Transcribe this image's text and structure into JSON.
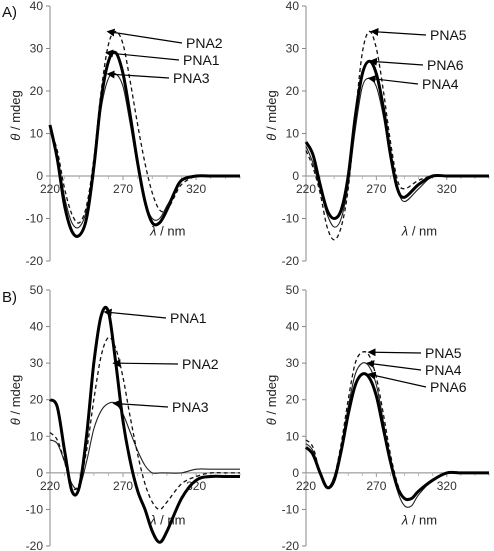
{
  "panel_labels": [
    "A)",
    "B)"
  ],
  "chart_data": [
    {
      "type": "line",
      "xlabel_symbol": "λ",
      "xlabel_unit": " / nm",
      "ylabel_symbol": "θ",
      "ylabel_unit": " / mdeg",
      "xlim": [
        220,
        350
      ],
      "ylim": [
        -20,
        40
      ],
      "x_ticks": [
        220,
        270,
        320
      ],
      "y_ticks": [
        -20,
        -10,
        0,
        10,
        20,
        30,
        40
      ],
      "grid": false,
      "series": [
        {
          "name": "PNA2",
          "style": "dashed",
          "x": [
            220,
            225,
            230,
            235,
            240,
            245,
            250,
            255,
            260,
            265,
            270,
            275,
            280,
            285,
            290,
            295,
            300,
            305,
            310,
            320,
            330,
            340,
            350
          ],
          "y": [
            11,
            6,
            -3,
            -9,
            -11,
            -7,
            4,
            20,
            31,
            34,
            31,
            22,
            12,
            3,
            -4,
            -8,
            -8,
            -5,
            -2,
            0,
            0,
            0,
            0
          ]
        },
        {
          "name": "PNA1",
          "style": "bold",
          "x": [
            220,
            225,
            230,
            235,
            240,
            245,
            250,
            255,
            260,
            265,
            270,
            275,
            280,
            285,
            290,
            295,
            300,
            305,
            310,
            320,
            330,
            340,
            350
          ],
          "y": [
            12,
            4,
            -7,
            -13,
            -14,
            -10,
            2,
            18,
            27,
            29,
            24,
            14,
            3,
            -6,
            -11,
            -11,
            -8,
            -4,
            -1,
            0,
            0,
            0,
            0
          ]
        },
        {
          "name": "PNA3",
          "style": "thin",
          "x": [
            220,
            225,
            230,
            235,
            240,
            245,
            250,
            255,
            260,
            265,
            270,
            275,
            280,
            285,
            290,
            295,
            300,
            305,
            310,
            320,
            330,
            340,
            350
          ],
          "y": [
            12,
            5,
            -5,
            -11,
            -12,
            -8,
            3,
            16,
            23,
            24,
            21,
            12,
            2,
            -6,
            -10,
            -10,
            -7,
            -4,
            -1,
            0,
            0,
            0,
            0
          ]
        }
      ],
      "annotations": [
        "PNA2",
        "PNA1",
        "PNA3"
      ]
    },
    {
      "type": "line",
      "xlabel_symbol": "λ",
      "xlabel_unit": " / nm",
      "ylabel_symbol": "θ",
      "ylabel_unit": " / mdeg",
      "xlim": [
        220,
        350
      ],
      "ylim": [
        -20,
        40
      ],
      "x_ticks": [
        220,
        270,
        320
      ],
      "y_ticks": [
        -20,
        -10,
        0,
        10,
        20,
        30,
        40
      ],
      "grid": false,
      "series": [
        {
          "name": "PNA5",
          "style": "dashed",
          "x": [
            220,
            225,
            230,
            235,
            240,
            245,
            250,
            255,
            260,
            265,
            270,
            275,
            280,
            285,
            290,
            300,
            310,
            320,
            330,
            340,
            350
          ],
          "y": [
            6,
            2,
            -4,
            -12,
            -15,
            -12,
            -3,
            14,
            29,
            34,
            30,
            20,
            8,
            -1,
            -3,
            -1,
            0,
            0,
            0,
            0,
            0
          ]
        },
        {
          "name": "PNA6",
          "style": "bold",
          "x": [
            220,
            225,
            230,
            235,
            240,
            245,
            250,
            255,
            260,
            265,
            270,
            275,
            280,
            285,
            290,
            300,
            310,
            320,
            330,
            340,
            350
          ],
          "y": [
            8,
            5,
            -2,
            -8,
            -10,
            -8,
            0,
            14,
            24,
            27,
            24,
            16,
            5,
            -3,
            -5,
            -2,
            0,
            0,
            0,
            0,
            0
          ]
        },
        {
          "name": "PNA4",
          "style": "thin",
          "x": [
            220,
            225,
            230,
            235,
            240,
            245,
            250,
            255,
            260,
            265,
            270,
            275,
            280,
            285,
            290,
            300,
            310,
            320,
            330,
            340,
            350
          ],
          "y": [
            7,
            3,
            -3,
            -9,
            -12,
            -10,
            -2,
            11,
            21,
            23,
            21,
            14,
            4,
            -3,
            -6,
            -3,
            0,
            0,
            0,
            0,
            0
          ]
        }
      ],
      "annotations": [
        "PNA5",
        "PNA6",
        "PNA4"
      ]
    },
    {
      "type": "line",
      "xlabel_symbol": "λ",
      "xlabel_unit": " / nm",
      "ylabel_symbol": "θ",
      "ylabel_unit": " / mdeg",
      "xlim": [
        220,
        350
      ],
      "ylim": [
        -20,
        50
      ],
      "x_ticks": [
        220,
        270,
        320
      ],
      "y_ticks": [
        -20,
        -10,
        0,
        10,
        20,
        30,
        40,
        50
      ],
      "grid": false,
      "series": [
        {
          "name": "PNA1",
          "style": "bold",
          "x": [
            220,
            225,
            230,
            235,
            240,
            245,
            250,
            255,
            260,
            265,
            270,
            275,
            280,
            285,
            290,
            295,
            300,
            310,
            320,
            330,
            340,
            350
          ],
          "y": [
            20,
            18,
            6,
            -5,
            -4,
            10,
            30,
            43,
            44,
            30,
            14,
            3,
            -5,
            -10,
            -16,
            -19,
            -16,
            -7,
            -2,
            -1,
            -1,
            -1
          ]
        },
        {
          "name": "PNA2",
          "style": "dashed",
          "x": [
            220,
            225,
            230,
            235,
            240,
            245,
            250,
            255,
            260,
            265,
            270,
            275,
            280,
            285,
            290,
            295,
            300,
            310,
            320,
            330,
            340,
            350
          ],
          "y": [
            11,
            9,
            3,
            -4,
            -3,
            6,
            20,
            32,
            37,
            34,
            26,
            15,
            5,
            -3,
            -8,
            -10,
            -8,
            -3,
            -1,
            0,
            0,
            0
          ]
        },
        {
          "name": "PNA3",
          "style": "thin",
          "x": [
            220,
            225,
            230,
            235,
            240,
            245,
            250,
            255,
            260,
            265,
            270,
            275,
            280,
            285,
            290,
            295,
            300,
            310,
            320,
            330,
            340,
            350
          ],
          "y": [
            9,
            8,
            3,
            -3,
            -4,
            3,
            12,
            17,
            19,
            19,
            16,
            11,
            6,
            2,
            0,
            0,
            0,
            0,
            1,
            1,
            1,
            1
          ]
        }
      ],
      "annotations": [
        "PNA1",
        "PNA2",
        "PNA3"
      ]
    },
    {
      "type": "line",
      "xlabel_symbol": "λ",
      "xlabel_unit": " / nm",
      "ylabel_symbol": "θ",
      "ylabel_unit": " / mdeg",
      "xlim": [
        220,
        350
      ],
      "ylim": [
        -20,
        50
      ],
      "x_ticks": [
        220,
        270,
        320
      ],
      "y_ticks": [
        -20,
        -10,
        0,
        10,
        20,
        30,
        40,
        50
      ],
      "grid": false,
      "series": [
        {
          "name": "PNA5",
          "style": "dashed",
          "x": [
            220,
            225,
            230,
            235,
            240,
            245,
            250,
            255,
            260,
            265,
            270,
            275,
            280,
            285,
            290,
            295,
            300,
            310,
            320,
            330,
            340,
            350
          ],
          "y": [
            9,
            7,
            0,
            -4,
            -1,
            8,
            20,
            30,
            33,
            32,
            26,
            16,
            5,
            -3,
            -7,
            -7,
            -5,
            -2,
            0,
            0,
            0,
            0
          ]
        },
        {
          "name": "PNA4",
          "style": "thin",
          "x": [
            220,
            225,
            230,
            235,
            240,
            245,
            250,
            255,
            260,
            265,
            270,
            275,
            280,
            285,
            290,
            295,
            300,
            310,
            320,
            330,
            340,
            350
          ],
          "y": [
            8,
            6,
            0,
            -4,
            -1,
            7,
            18,
            27,
            30,
            29,
            24,
            14,
            3,
            -5,
            -9,
            -9,
            -6,
            -2,
            0,
            0,
            0,
            0
          ]
        },
        {
          "name": "PNA6",
          "style": "bold",
          "x": [
            220,
            225,
            230,
            235,
            240,
            245,
            250,
            255,
            260,
            265,
            270,
            275,
            280,
            285,
            290,
            295,
            300,
            310,
            320,
            330,
            340,
            350
          ],
          "y": [
            7,
            5,
            0,
            -4,
            -2,
            6,
            16,
            24,
            27,
            26,
            21,
            12,
            3,
            -4,
            -7,
            -7,
            -5,
            -2,
            0,
            0,
            0,
            0
          ]
        }
      ],
      "annotations": [
        "PNA5",
        "PNA4",
        "PNA6"
      ]
    }
  ]
}
